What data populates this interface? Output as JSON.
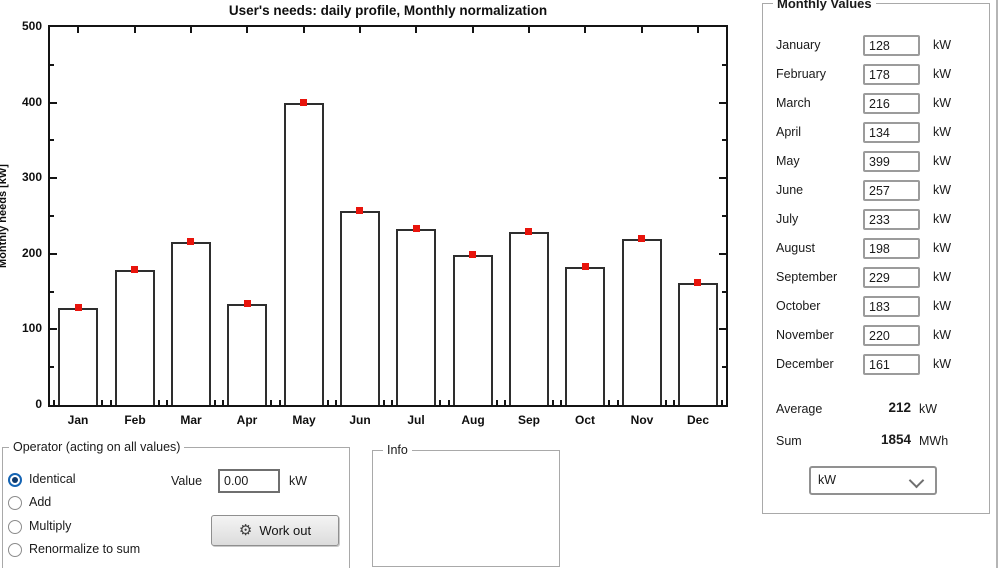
{
  "chart_data": {
    "type": "bar",
    "title": "User's needs: daily profile, Monthly normalization",
    "xlabel": "",
    "ylabel": "Monthly needs [kW]",
    "categories": [
      "Jan",
      "Feb",
      "Mar",
      "Apr",
      "May",
      "Jun",
      "Jul",
      "Aug",
      "Sep",
      "Oct",
      "Nov",
      "Dec"
    ],
    "values": [
      128,
      178,
      216,
      134,
      399,
      257,
      233,
      198,
      229,
      183,
      220,
      161
    ],
    "ylim": [
      0,
      500
    ],
    "yticks": [
      0,
      100,
      200,
      300,
      400,
      500
    ],
    "grid": false,
    "legend": "none",
    "bar_fill": "#ffffff",
    "bar_border": "#2e2e2e",
    "marker": {
      "shape": "square",
      "color": "#e8140c",
      "position": "bar-top"
    }
  },
  "monthly_values": {
    "title": "Monthly Values",
    "rows": [
      {
        "label": "January",
        "value": "128",
        "unit": "kW"
      },
      {
        "label": "February",
        "value": "178",
        "unit": "kW"
      },
      {
        "label": "March",
        "value": "216",
        "unit": "kW"
      },
      {
        "label": "April",
        "value": "134",
        "unit": "kW"
      },
      {
        "label": "May",
        "value": "399",
        "unit": "kW"
      },
      {
        "label": "June",
        "value": "257",
        "unit": "kW"
      },
      {
        "label": "July",
        "value": "233",
        "unit": "kW"
      },
      {
        "label": "August",
        "value": "198",
        "unit": "kW"
      },
      {
        "label": "September",
        "value": "229",
        "unit": "kW"
      },
      {
        "label": "October",
        "value": "183",
        "unit": "kW"
      },
      {
        "label": "November",
        "value": "220",
        "unit": "kW"
      },
      {
        "label": "December",
        "value": "161",
        "unit": "kW"
      }
    ],
    "average": {
      "label": "Average",
      "value": "212",
      "unit": "kW"
    },
    "sum": {
      "label": "Sum",
      "value": "1854",
      "unit": "MWh"
    },
    "unit_select": {
      "selected": "kW"
    }
  },
  "operator": {
    "title": "Operator (acting on all values)",
    "options": [
      {
        "label": "Identical",
        "selected": true
      },
      {
        "label": "Add",
        "selected": false
      },
      {
        "label": "Multiply",
        "selected": false
      },
      {
        "label": "Renormalize to sum",
        "selected": false
      }
    ],
    "value_label": "Value",
    "value": "0.00",
    "unit": "kW",
    "button": {
      "label": "Work out",
      "icon": "gear-icon",
      "glyph": "⚙"
    }
  },
  "info": {
    "title": "Info"
  }
}
